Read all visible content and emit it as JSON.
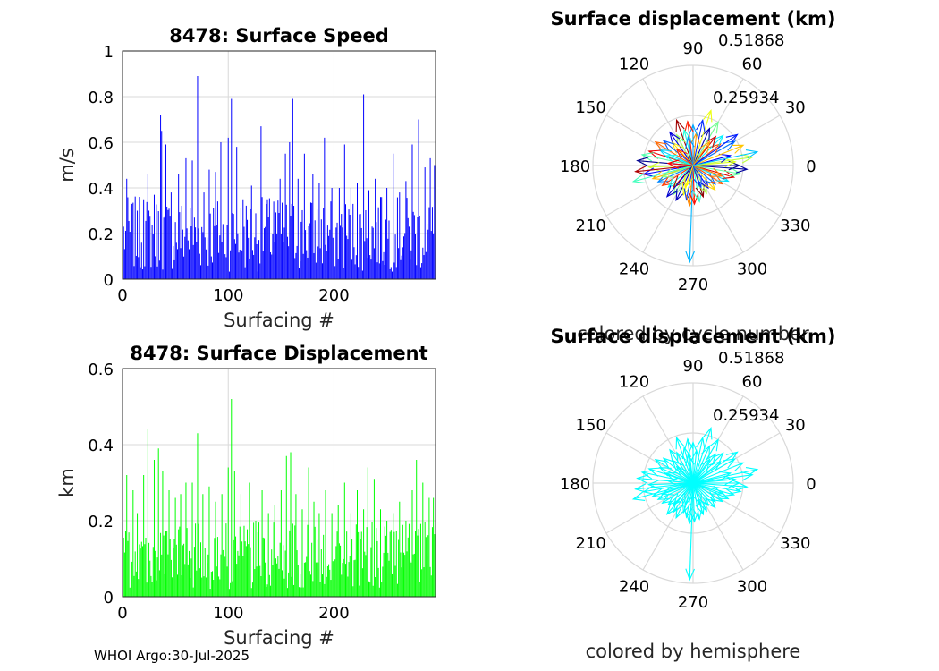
{
  "footer": "WHOI Argo:30-Jul-2025",
  "colors": {
    "speed_bar": "#0000ff",
    "disp_bar": "#00ff00",
    "polar_mono": "#00ffff",
    "grid": "#d9d9d9",
    "axis": "#262626"
  },
  "chart_data": [
    {
      "id": "speed",
      "type": "bar",
      "title": "8478: Surface Speed",
      "xlabel": "Surfacing #",
      "ylabel": "m/s",
      "xlim": [
        0,
        296
      ],
      "ylim": [
        0,
        1
      ],
      "xticks": [
        0,
        100,
        200
      ],
      "xtick_labels": [
        "0",
        "100",
        "200"
      ],
      "yticks": [
        0,
        0.2,
        0.4,
        0.6,
        0.8,
        1
      ],
      "ytick_labels": [
        "0",
        "0.2",
        "0.4",
        "0.6",
        "0.8",
        "1"
      ],
      "grid": true,
      "peaks": [
        [
          4,
          0.44
        ],
        [
          9,
          0.33
        ],
        [
          14,
          0.3
        ],
        [
          20,
          0.35
        ],
        [
          24,
          0.46
        ],
        [
          30,
          0.37
        ],
        [
          36,
          0.72
        ],
        [
          37,
          0.65
        ],
        [
          41,
          0.59
        ],
        [
          46,
          0.38
        ],
        [
          53,
          0.46
        ],
        [
          60,
          0.53
        ],
        [
          66,
          0.52
        ],
        [
          71,
          0.89
        ],
        [
          77,
          0.38
        ],
        [
          82,
          0.48
        ],
        [
          88,
          0.47
        ],
        [
          93,
          0.6
        ],
        [
          100,
          0.62
        ],
        [
          103,
          0.79
        ],
        [
          108,
          0.58
        ],
        [
          114,
          0.35
        ],
        [
          122,
          0.41
        ],
        [
          131,
          0.67
        ],
        [
          137,
          0.35
        ],
        [
          143,
          0.34
        ],
        [
          149,
          0.44
        ],
        [
          154,
          0.55
        ],
        [
          158,
          0.6
        ],
        [
          161,
          0.79
        ],
        [
          166,
          0.44
        ],
        [
          172,
          0.55
        ],
        [
          180,
          0.46
        ],
        [
          186,
          0.42
        ],
        [
          191,
          0.62
        ],
        [
          198,
          0.4
        ],
        [
          205,
          0.4
        ],
        [
          210,
          0.59
        ],
        [
          216,
          0.4
        ],
        [
          222,
          0.42
        ],
        [
          228,
          0.81
        ],
        [
          233,
          0.39
        ],
        [
          239,
          0.44
        ],
        [
          244,
          0.36
        ],
        [
          250,
          0.4
        ],
        [
          256,
          0.55
        ],
        [
          262,
          0.38
        ],
        [
          268,
          0.43
        ],
        [
          274,
          0.59
        ],
        [
          280,
          0.7
        ],
        [
          286,
          0.49
        ],
        [
          291,
          0.53
        ],
        [
          295,
          0.5
        ]
      ],
      "base_level": 0.22
    },
    {
      "id": "disp",
      "type": "bar",
      "title": "8478: Surface Displacement",
      "xlabel": "Surfacing #",
      "ylabel": "km",
      "xlim": [
        0,
        296
      ],
      "ylim": [
        0,
        0.6
      ],
      "xticks": [
        0,
        100,
        200
      ],
      "xtick_labels": [
        "0",
        "100",
        "200"
      ],
      "yticks": [
        0,
        0.2,
        0.4,
        0.6
      ],
      "ytick_labels": [
        "0",
        "0.2",
        "0.4",
        "0.6"
      ],
      "grid": true,
      "peaks": [
        [
          4,
          0.32
        ],
        [
          10,
          0.28
        ],
        [
          14,
          0.22
        ],
        [
          20,
          0.32
        ],
        [
          24,
          0.44
        ],
        [
          30,
          0.36
        ],
        [
          34,
          0.39
        ],
        [
          38,
          0.33
        ],
        [
          44,
          0.28
        ],
        [
          50,
          0.26
        ],
        [
          55,
          0.27
        ],
        [
          60,
          0.3
        ],
        [
          66,
          0.3
        ],
        [
          71,
          0.43
        ],
        [
          76,
          0.27
        ],
        [
          82,
          0.29
        ],
        [
          88,
          0.25
        ],
        [
          94,
          0.27
        ],
        [
          100,
          0.34
        ],
        [
          103,
          0.52
        ],
        [
          106,
          0.33
        ],
        [
          112,
          0.27
        ],
        [
          120,
          0.3
        ],
        [
          126,
          0.2
        ],
        [
          132,
          0.28
        ],
        [
          138,
          0.22
        ],
        [
          144,
          0.24
        ],
        [
          150,
          0.28
        ],
        [
          155,
          0.37
        ],
        [
          159,
          0.38
        ],
        [
          164,
          0.27
        ],
        [
          170,
          0.23
        ],
        [
          176,
          0.34
        ],
        [
          181,
          0.25
        ],
        [
          186,
          0.22
        ],
        [
          192,
          0.28
        ],
        [
          198,
          0.22
        ],
        [
          204,
          0.24
        ],
        [
          210,
          0.3
        ],
        [
          216,
          0.22
        ],
        [
          222,
          0.28
        ],
        [
          228,
          0.23
        ],
        [
          232,
          0.34
        ],
        [
          238,
          0.31
        ],
        [
          244,
          0.23
        ],
        [
          250,
          0.2
        ],
        [
          256,
          0.22
        ],
        [
          262,
          0.25
        ],
        [
          268,
          0.2
        ],
        [
          274,
          0.28
        ],
        [
          278,
          0.36
        ],
        [
          284,
          0.3
        ],
        [
          290,
          0.26
        ],
        [
          294,
          0.26
        ]
      ],
      "base_level": 0.12
    },
    {
      "id": "polar1",
      "type": "polar",
      "title": "Surface displacement (km)",
      "caption": "colored by cycle number",
      "rmax": 0.51868,
      "rtick_labels": [
        "0.25934",
        "0.51868"
      ],
      "theta_labels": [
        "0",
        "30",
        "60",
        "90",
        "120",
        "150",
        "180",
        "210",
        "240",
        "270",
        "300",
        "330"
      ],
      "coloring": "cycle",
      "vectors": [
        [
          0,
          0.24
        ],
        [
          8,
          0.31
        ],
        [
          15,
          0.2
        ],
        [
          22,
          0.28
        ],
        [
          30,
          0.25
        ],
        [
          38,
          0.18
        ],
        [
          45,
          0.22
        ],
        [
          52,
          0.19
        ],
        [
          60,
          0.26
        ],
        [
          66,
          0.21
        ],
        [
          72,
          0.3
        ],
        [
          78,
          0.24
        ],
        [
          84,
          0.17
        ],
        [
          90,
          0.21
        ],
        [
          97,
          0.23
        ],
        [
          104,
          0.19
        ],
        [
          110,
          0.25
        ],
        [
          118,
          0.18
        ],
        [
          125,
          0.21
        ],
        [
          132,
          0.16
        ],
        [
          140,
          0.2
        ],
        [
          148,
          0.23
        ],
        [
          155,
          0.19
        ],
        [
          162,
          0.24
        ],
        [
          168,
          0.27
        ],
        [
          175,
          0.29
        ],
        [
          182,
          0.23
        ],
        [
          190,
          0.26
        ],
        [
          198,
          0.22
        ],
        [
          205,
          0.2
        ],
        [
          213,
          0.19
        ],
        [
          221,
          0.17
        ],
        [
          228,
          0.15
        ],
        [
          236,
          0.18
        ],
        [
          244,
          0.2
        ],
        [
          252,
          0.16
        ],
        [
          259,
          0.18
        ],
        [
          265,
          0.21
        ],
        [
          268,
          0.5
        ],
        [
          272,
          0.2
        ],
        [
          280,
          0.19
        ],
        [
          288,
          0.17
        ],
        [
          296,
          0.16
        ],
        [
          304,
          0.14
        ],
        [
          312,
          0.17
        ],
        [
          320,
          0.15
        ],
        [
          328,
          0.18
        ],
        [
          336,
          0.2
        ],
        [
          344,
          0.22
        ],
        [
          350,
          0.25
        ],
        [
          356,
          0.28
        ],
        [
          5,
          0.22
        ],
        [
          35,
          0.28
        ],
        [
          55,
          0.15
        ],
        [
          100,
          0.15
        ],
        [
          135,
          0.12
        ],
        [
          160,
          0.15
        ],
        [
          186,
          0.3
        ],
        [
          200,
          0.17
        ],
        [
          230,
          0.21
        ],
        [
          250,
          0.12
        ],
        [
          290,
          0.12
        ],
        [
          340,
          0.16
        ],
        [
          12,
          0.34
        ],
        [
          175,
          0.13
        ],
        [
          195,
          0.32
        ]
      ]
    },
    {
      "id": "polar2",
      "type": "polar",
      "title": "Surface displacement (km)",
      "caption": "colored by hemisphere",
      "rmax": 0.51868,
      "rtick_labels": [
        "0.25934",
        "0.51868"
      ],
      "theta_labels": [
        "0",
        "30",
        "60",
        "90",
        "120",
        "150",
        "180",
        "210",
        "240",
        "270",
        "300",
        "330"
      ],
      "coloring": "mono",
      "vectors": [
        [
          0,
          0.24
        ],
        [
          8,
          0.31
        ],
        [
          15,
          0.2
        ],
        [
          22,
          0.28
        ],
        [
          30,
          0.25
        ],
        [
          38,
          0.18
        ],
        [
          45,
          0.22
        ],
        [
          52,
          0.19
        ],
        [
          60,
          0.26
        ],
        [
          66,
          0.21
        ],
        [
          72,
          0.3
        ],
        [
          78,
          0.24
        ],
        [
          84,
          0.17
        ],
        [
          90,
          0.21
        ],
        [
          97,
          0.23
        ],
        [
          104,
          0.19
        ],
        [
          110,
          0.25
        ],
        [
          118,
          0.18
        ],
        [
          125,
          0.21
        ],
        [
          132,
          0.16
        ],
        [
          140,
          0.2
        ],
        [
          148,
          0.23
        ],
        [
          155,
          0.19
        ],
        [
          162,
          0.24
        ],
        [
          168,
          0.27
        ],
        [
          175,
          0.29
        ],
        [
          182,
          0.23
        ],
        [
          190,
          0.26
        ],
        [
          198,
          0.22
        ],
        [
          205,
          0.2
        ],
        [
          213,
          0.19
        ],
        [
          221,
          0.17
        ],
        [
          228,
          0.15
        ],
        [
          236,
          0.18
        ],
        [
          244,
          0.2
        ],
        [
          252,
          0.16
        ],
        [
          259,
          0.18
        ],
        [
          265,
          0.21
        ],
        [
          268,
          0.5
        ],
        [
          272,
          0.2
        ],
        [
          280,
          0.19
        ],
        [
          288,
          0.17
        ],
        [
          296,
          0.16
        ],
        [
          304,
          0.14
        ],
        [
          312,
          0.17
        ],
        [
          320,
          0.15
        ],
        [
          328,
          0.18
        ],
        [
          336,
          0.2
        ],
        [
          344,
          0.22
        ],
        [
          350,
          0.25
        ],
        [
          356,
          0.28
        ],
        [
          5,
          0.22
        ],
        [
          35,
          0.28
        ],
        [
          55,
          0.15
        ],
        [
          100,
          0.15
        ],
        [
          135,
          0.12
        ],
        [
          160,
          0.15
        ],
        [
          186,
          0.3
        ],
        [
          200,
          0.17
        ],
        [
          230,
          0.21
        ],
        [
          250,
          0.12
        ],
        [
          290,
          0.12
        ],
        [
          340,
          0.16
        ],
        [
          12,
          0.34
        ],
        [
          175,
          0.13
        ],
        [
          195,
          0.32
        ]
      ]
    }
  ]
}
